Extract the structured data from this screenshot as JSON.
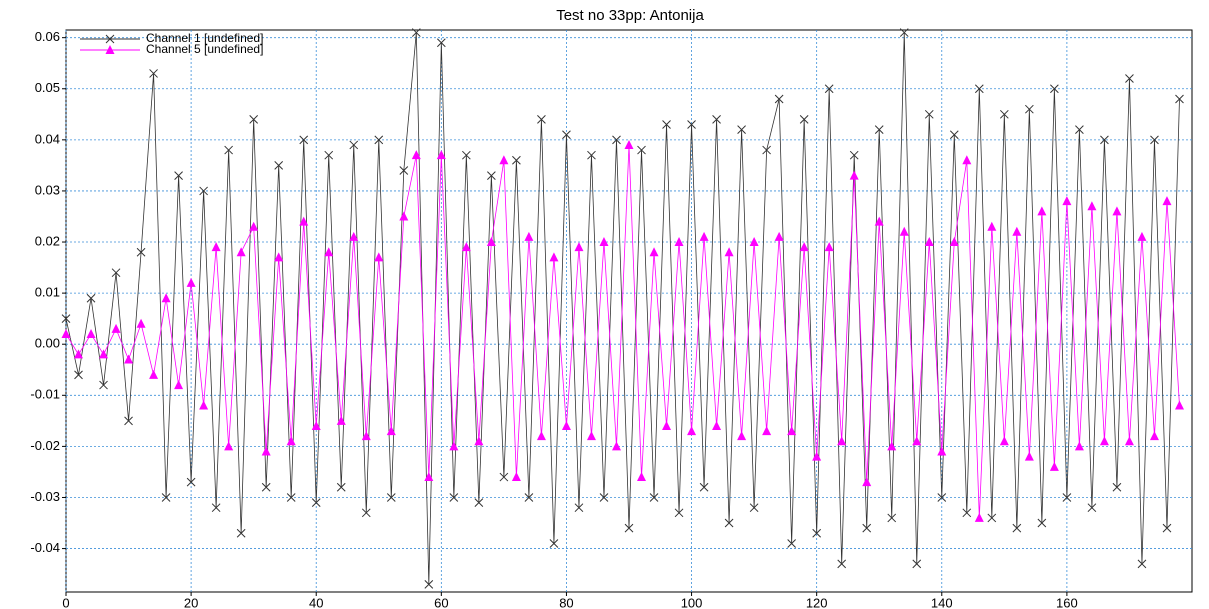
{
  "chart_data": {
    "type": "line",
    "title": "Test no 33pp: Antonija",
    "x": [
      0,
      2,
      4,
      6,
      8,
      10,
      12,
      14,
      16,
      18,
      20,
      22,
      24,
      26,
      28,
      30,
      32,
      34,
      36,
      38,
      40,
      42,
      44,
      46,
      48,
      50,
      52,
      54,
      56,
      58,
      60,
      62,
      64,
      66,
      68,
      70,
      72,
      74,
      76,
      78,
      80,
      82,
      84,
      86,
      88,
      90,
      92,
      94,
      96,
      98,
      100,
      102,
      104,
      106,
      108,
      110,
      112,
      114,
      116,
      118,
      120,
      122,
      124,
      126,
      128,
      130,
      132,
      134,
      136,
      138,
      140,
      142,
      144,
      146,
      148,
      150,
      152,
      154,
      156,
      158,
      160,
      162,
      164,
      166,
      168,
      170,
      172,
      174,
      176,
      178
    ],
    "series": [
      {
        "name": "Channel 1 [undefined]",
        "color": "#333333",
        "marker": "x",
        "values": [
          0.005,
          -0.006,
          0.009,
          -0.008,
          0.014,
          -0.015,
          0.018,
          0.053,
          -0.03,
          0.033,
          -0.027,
          0.03,
          -0.032,
          0.038,
          -0.037,
          0.044,
          -0.028,
          0.035,
          -0.03,
          0.04,
          -0.031,
          0.037,
          -0.028,
          0.039,
          -0.033,
          0.04,
          -0.03,
          0.034,
          0.061,
          -0.047,
          0.059,
          -0.03,
          0.037,
          -0.031,
          0.033,
          -0.026,
          0.036,
          -0.03,
          0.044,
          -0.039,
          0.041,
          -0.032,
          0.037,
          -0.03,
          0.04,
          -0.036,
          0.038,
          -0.03,
          0.043,
          -0.033,
          0.043,
          -0.028,
          0.044,
          -0.035,
          0.042,
          -0.032,
          0.038,
          0.048,
          -0.039,
          0.044,
          -0.037,
          0.05,
          -0.043,
          0.037,
          -0.036,
          0.042,
          -0.034,
          0.061,
          -0.043,
          0.045,
          -0.03,
          0.041,
          -0.033,
          0.05,
          -0.034,
          0.045,
          -0.036,
          0.046,
          -0.035,
          0.05,
          -0.03,
          0.042,
          -0.032,
          0.04,
          -0.028,
          0.052,
          -0.043,
          0.04,
          -0.036,
          0.048
        ]
      },
      {
        "name": "Channel 5 [undefined]",
        "color": "#ff00ff",
        "marker": "triangle",
        "values": [
          0.002,
          -0.002,
          0.002,
          -0.002,
          0.003,
          -0.003,
          0.004,
          -0.006,
          0.009,
          -0.008,
          0.012,
          -0.012,
          0.019,
          -0.02,
          0.018,
          0.023,
          -0.021,
          0.017,
          -0.019,
          0.024,
          -0.016,
          0.018,
          -0.015,
          0.021,
          -0.018,
          0.017,
          -0.017,
          0.025,
          0.037,
          -0.026,
          0.037,
          -0.02,
          0.019,
          -0.019,
          0.02,
          0.036,
          -0.026,
          0.021,
          -0.018,
          0.017,
          -0.016,
          0.019,
          -0.018,
          0.02,
          -0.02,
          0.039,
          -0.026,
          0.018,
          -0.016,
          0.02,
          -0.017,
          0.021,
          -0.016,
          0.018,
          -0.018,
          0.02,
          -0.017,
          0.021,
          -0.017,
          0.019,
          -0.022,
          0.019,
          -0.019,
          0.033,
          -0.027,
          0.024,
          -0.02,
          0.022,
          -0.019,
          0.02,
          -0.021,
          0.02,
          0.036,
          -0.034,
          0.023,
          -0.019,
          0.022,
          -0.022,
          0.026,
          -0.024,
          0.028,
          -0.02,
          0.027,
          -0.019,
          0.026,
          -0.019,
          0.021,
          -0.018,
          0.028,
          -0.012
        ]
      }
    ],
    "xlim": [
      0,
      180
    ],
    "ylim": [
      -0.0485,
      0.0615
    ],
    "xticks": [
      0,
      20,
      40,
      60,
      80,
      100,
      120,
      140,
      160
    ],
    "yticks": [
      -0.04,
      -0.03,
      -0.02,
      -0.01,
      {
        "value": 0,
        "label": "0.00"
      },
      0.01,
      0.02,
      0.03,
      0.04,
      0.05,
      0.06
    ],
    "grid": true,
    "legend": "top-left"
  }
}
